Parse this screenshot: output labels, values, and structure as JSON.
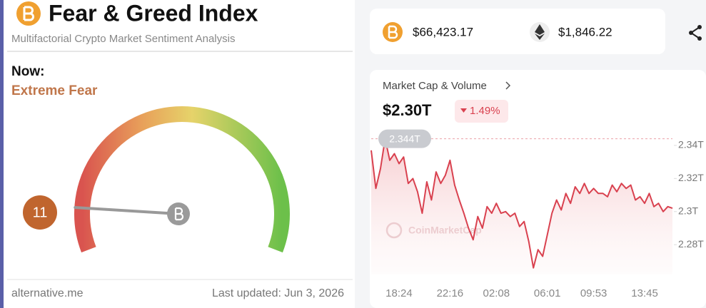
{
  "fear_greed": {
    "title": "Fear & Greed Index",
    "subtitle": "Multifactorial Crypto Market Sentiment Analysis",
    "now_label": "Now:",
    "classification": "Extreme Fear",
    "value": 11,
    "gauge_lim": [
      0,
      100
    ],
    "source": "alternative.me",
    "updated": "Last updated: Jun 3, 2026"
  },
  "prices": {
    "btc": "$66,423.17",
    "eth": "$1,846.22"
  },
  "chart_data": {
    "type": "line",
    "title": "Market Cap & Volume",
    "headline": "$2.30T",
    "change": "1.49%",
    "watermark": "CoinMarketCap",
    "categories": [
      null,
      null,
      null,
      null,
      null,
      null,
      "18:24",
      null,
      null,
      null,
      null,
      null,
      null,
      null,
      null,
      null,
      null,
      "22:16",
      null,
      null,
      null,
      null,
      null,
      null,
      null,
      null,
      null,
      "02:08",
      null,
      null,
      null,
      null,
      null,
      null,
      null,
      null,
      null,
      null,
      "06:01",
      null,
      null,
      null,
      null,
      null,
      null,
      null,
      null,
      null,
      "09:53",
      null,
      null,
      null,
      null,
      null,
      null,
      null,
      null,
      null,
      null,
      "13:45",
      null,
      null,
      null,
      null,
      null,
      null
    ],
    "series": [
      {
        "name": "Market Cap",
        "color": "#d9414f",
        "values": [
          2.337,
          2.314,
          2.326,
          2.344,
          2.331,
          2.335,
          2.329,
          2.333,
          2.317,
          2.32,
          2.312,
          2.299,
          2.318,
          2.307,
          2.324,
          2.317,
          2.322,
          2.331,
          2.316,
          2.307,
          2.299,
          2.29,
          2.283,
          2.297,
          2.29,
          2.303,
          2.299,
          2.305,
          2.299,
          2.3,
          2.297,
          2.299,
          2.291,
          2.294,
          2.282,
          2.266,
          2.277,
          2.273,
          2.286,
          2.299,
          2.307,
          2.301,
          2.311,
          2.305,
          2.315,
          2.311,
          2.317,
          2.311,
          2.314,
          2.311,
          2.311,
          2.309,
          2.316,
          2.312,
          2.317,
          2.314,
          2.316,
          2.307,
          2.309,
          2.305,
          2.311,
          2.303,
          2.305,
          2.3,
          2.303,
          2.302
        ]
      }
    ],
    "high": {
      "value": 2.344,
      "label": "2.344T"
    },
    "ylim": [
      2.262,
      2.346
    ],
    "yticks": [
      {
        "value": 2.34,
        "label": "2.34T"
      },
      {
        "value": 2.32,
        "label": "2.32T"
      },
      {
        "value": 2.3,
        "label": "2.3T"
      },
      {
        "value": 2.28,
        "label": "2.28T"
      }
    ]
  }
}
